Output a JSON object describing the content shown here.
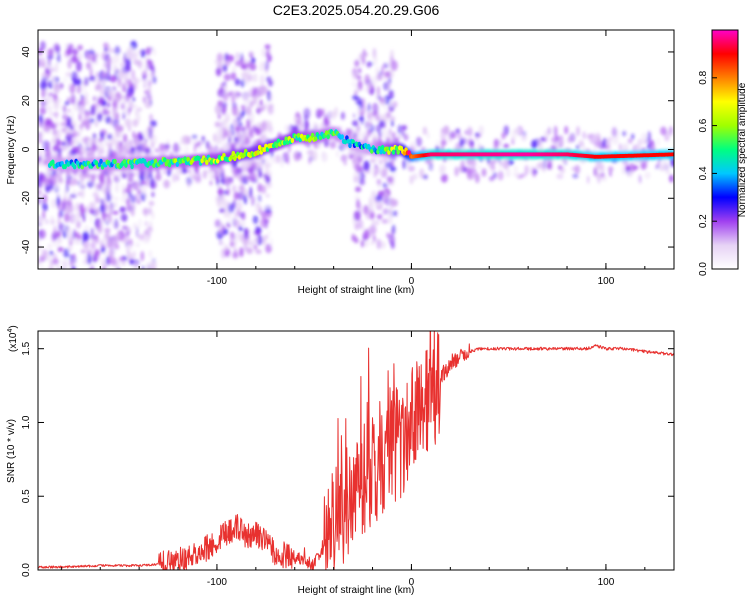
{
  "title": "C2E3.2025.054.20.29.G06",
  "chart_data": [
    {
      "type": "heatmap",
      "xlabel": "Height of straight line (km)",
      "ylabel": "Frequency (Hz)",
      "xlim": [
        -192,
        135
      ],
      "ylim": [
        -49,
        49
      ],
      "x_ticks": [
        -100,
        0,
        100
      ],
      "y_ticks": [
        -40,
        -20,
        0,
        20,
        40
      ],
      "colorbar": {
        "label": "Normalized spectral amplitude",
        "range": [
          0,
          1
        ],
        "ticks": [
          0.0,
          0.2,
          0.4,
          0.6,
          0.8
        ],
        "colors": [
          "#ffffff",
          "#e6d2f5",
          "#a040f0",
          "#0000ff",
          "#00c8ff",
          "#00ff80",
          "#a0ff00",
          "#ffff00",
          "#ff8000",
          "#ff0000",
          "#ff00c8"
        ]
      },
      "ridge": [
        {
          "x": -180,
          "y": -6,
          "a": 0.3
        },
        {
          "x": -150,
          "y": -6,
          "a": 0.35
        },
        {
          "x": -120,
          "y": -5,
          "a": 0.4
        },
        {
          "x": -100,
          "y": -4,
          "a": 0.45
        },
        {
          "x": -80,
          "y": -1,
          "a": 0.5
        },
        {
          "x": -60,
          "y": 5,
          "a": 0.45
        },
        {
          "x": -50,
          "y": 5,
          "a": 0.4
        },
        {
          "x": -40,
          "y": 7,
          "a": 0.35
        },
        {
          "x": -30,
          "y": 2,
          "a": 0.3
        },
        {
          "x": -20,
          "y": 0,
          "a": 0.3
        },
        {
          "x": -5,
          "y": 0,
          "a": 0.55
        },
        {
          "x": 0,
          "y": -3,
          "a": 0.8
        },
        {
          "x": 10,
          "y": -2,
          "a": 0.95
        },
        {
          "x": 60,
          "y": -2,
          "a": 0.98
        },
        {
          "x": 80,
          "y": -2,
          "a": 0.95
        },
        {
          "x": 95,
          "y": -3,
          "a": 0.9
        },
        {
          "x": 135,
          "y": -2,
          "a": 0.9
        }
      ]
    },
    {
      "type": "line",
      "xlabel": "Height of straight line (km)",
      "ylabel": "SNR (10 * v/v)",
      "multiplier": "(x10",
      "multiplier_exp": "4",
      "multiplier_close": ")",
      "xlim": [
        -192,
        135
      ],
      "ylim": [
        0,
        1.62
      ],
      "x_ticks": [
        -100,
        0,
        100
      ],
      "y_ticks": [
        "0.0",
        "0.5",
        "1.0",
        "1.5"
      ],
      "series": [
        {
          "color": "#e8312f",
          "x": [
            -192,
            -180,
            -160,
            -140,
            -130,
            -120,
            -110,
            -105,
            -100,
            -95,
            -90,
            -85,
            -80,
            -75,
            -70,
            -65,
            -60,
            -55,
            -50,
            -45,
            -42,
            -40,
            -35,
            -30,
            -25,
            -20,
            -15,
            -10,
            -5,
            0,
            5,
            10,
            12,
            15,
            20,
            25,
            30,
            35,
            40,
            50,
            60,
            70,
            80,
            90,
            95,
            100,
            110,
            120,
            135
          ],
          "y": [
            0.02,
            0.02,
            0.03,
            0.03,
            0.04,
            0.06,
            0.1,
            0.15,
            0.2,
            0.25,
            0.3,
            0.22,
            0.25,
            0.2,
            0.12,
            0.1,
            0.08,
            0.06,
            0.04,
            0.15,
            0.2,
            0.3,
            0.45,
            0.55,
            0.65,
            0.7,
            0.75,
            0.8,
            0.9,
            1.0,
            1.1,
            1.2,
            1.25,
            1.3,
            1.4,
            1.45,
            1.48,
            1.5,
            1.5,
            1.5,
            1.5,
            1.5,
            1.5,
            1.5,
            1.52,
            1.5,
            1.5,
            1.48,
            1.46
          ]
        }
      ]
    }
  ]
}
